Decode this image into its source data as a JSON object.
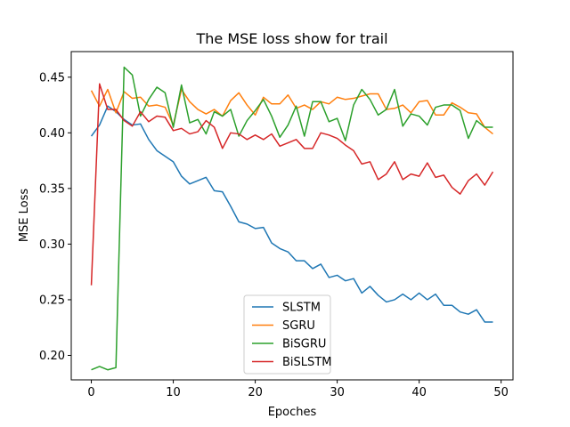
{
  "chart_data": {
    "type": "line",
    "title": "The MSE loss show for trail",
    "xlabel": "Epoches",
    "ylabel": "MSE Loss",
    "xlim": [
      -2.45,
      51.45
    ],
    "ylim": [
      0.178,
      0.473
    ],
    "xticks": [
      0,
      10,
      20,
      30,
      40,
      50
    ],
    "yticks": [
      0.2,
      0.25,
      0.3,
      0.35,
      0.4,
      0.45
    ],
    "xtick_labels": [
      "0",
      "10",
      "20",
      "30",
      "40",
      "50"
    ],
    "ytick_labels": [
      "0.20",
      "0.25",
      "0.30",
      "0.35",
      "0.40",
      "0.45"
    ],
    "grid": false,
    "legend_position": "lower-center",
    "x": [
      0,
      1,
      2,
      3,
      4,
      5,
      6,
      7,
      8,
      9,
      10,
      11,
      12,
      13,
      14,
      15,
      16,
      17,
      18,
      19,
      20,
      21,
      22,
      23,
      24,
      25,
      26,
      27,
      28,
      29,
      30,
      31,
      32,
      33,
      34,
      35,
      36,
      37,
      38,
      39,
      40,
      41,
      42,
      43,
      44,
      45,
      46,
      47,
      48,
      49
    ],
    "series": [
      {
        "name": "SLSTM",
        "color": "#1f77b4",
        "values": [
          0.397,
          0.407,
          0.424,
          0.419,
          0.412,
          0.407,
          0.408,
          0.394,
          0.384,
          0.379,
          0.374,
          0.361,
          0.354,
          0.357,
          0.36,
          0.348,
          0.347,
          0.334,
          0.32,
          0.318,
          0.314,
          0.315,
          0.301,
          0.296,
          0.293,
          0.285,
          0.285,
          0.278,
          0.282,
          0.27,
          0.272,
          0.267,
          0.269,
          0.256,
          0.262,
          0.254,
          0.248,
          0.25,
          0.255,
          0.25,
          0.256,
          0.25,
          0.255,
          0.245,
          0.245,
          0.239,
          0.237,
          0.241,
          0.23,
          0.23
        ]
      },
      {
        "name": "SGRU",
        "color": "#ff7f0e",
        "values": [
          0.438,
          0.424,
          0.439,
          0.418,
          0.437,
          0.431,
          0.432,
          0.424,
          0.425,
          0.423,
          0.407,
          0.439,
          0.428,
          0.421,
          0.417,
          0.421,
          0.415,
          0.429,
          0.436,
          0.425,
          0.416,
          0.432,
          0.426,
          0.426,
          0.434,
          0.422,
          0.425,
          0.421,
          0.428,
          0.426,
          0.432,
          0.43,
          0.431,
          0.433,
          0.435,
          0.435,
          0.421,
          0.422,
          0.425,
          0.418,
          0.428,
          0.429,
          0.416,
          0.416,
          0.427,
          0.423,
          0.418,
          0.417,
          0.405,
          0.399
        ]
      },
      {
        "name": "BiSGRU",
        "color": "#2ca02c",
        "values": [
          0.187,
          0.19,
          0.187,
          0.189,
          0.459,
          0.452,
          0.415,
          0.43,
          0.441,
          0.436,
          0.405,
          0.443,
          0.409,
          0.412,
          0.399,
          0.419,
          0.415,
          0.421,
          0.397,
          0.411,
          0.42,
          0.43,
          0.415,
          0.396,
          0.407,
          0.424,
          0.397,
          0.428,
          0.428,
          0.41,
          0.413,
          0.393,
          0.425,
          0.439,
          0.43,
          0.416,
          0.421,
          0.439,
          0.406,
          0.417,
          0.415,
          0.407,
          0.423,
          0.425,
          0.425,
          0.42,
          0.395,
          0.411,
          0.405,
          0.405
        ]
      },
      {
        "name": "BiSLSTM",
        "color": "#d62728",
        "values": [
          0.263,
          0.444,
          0.421,
          0.421,
          0.411,
          0.406,
          0.419,
          0.41,
          0.415,
          0.414,
          0.402,
          0.404,
          0.399,
          0.401,
          0.411,
          0.405,
          0.386,
          0.4,
          0.399,
          0.394,
          0.398,
          0.394,
          0.399,
          0.388,
          0.391,
          0.394,
          0.386,
          0.386,
          0.4,
          0.398,
          0.395,
          0.389,
          0.384,
          0.372,
          0.374,
          0.358,
          0.363,
          0.374,
          0.358,
          0.363,
          0.361,
          0.373,
          0.36,
          0.362,
          0.351,
          0.345,
          0.357,
          0.363,
          0.353,
          0.365
        ]
      }
    ]
  }
}
